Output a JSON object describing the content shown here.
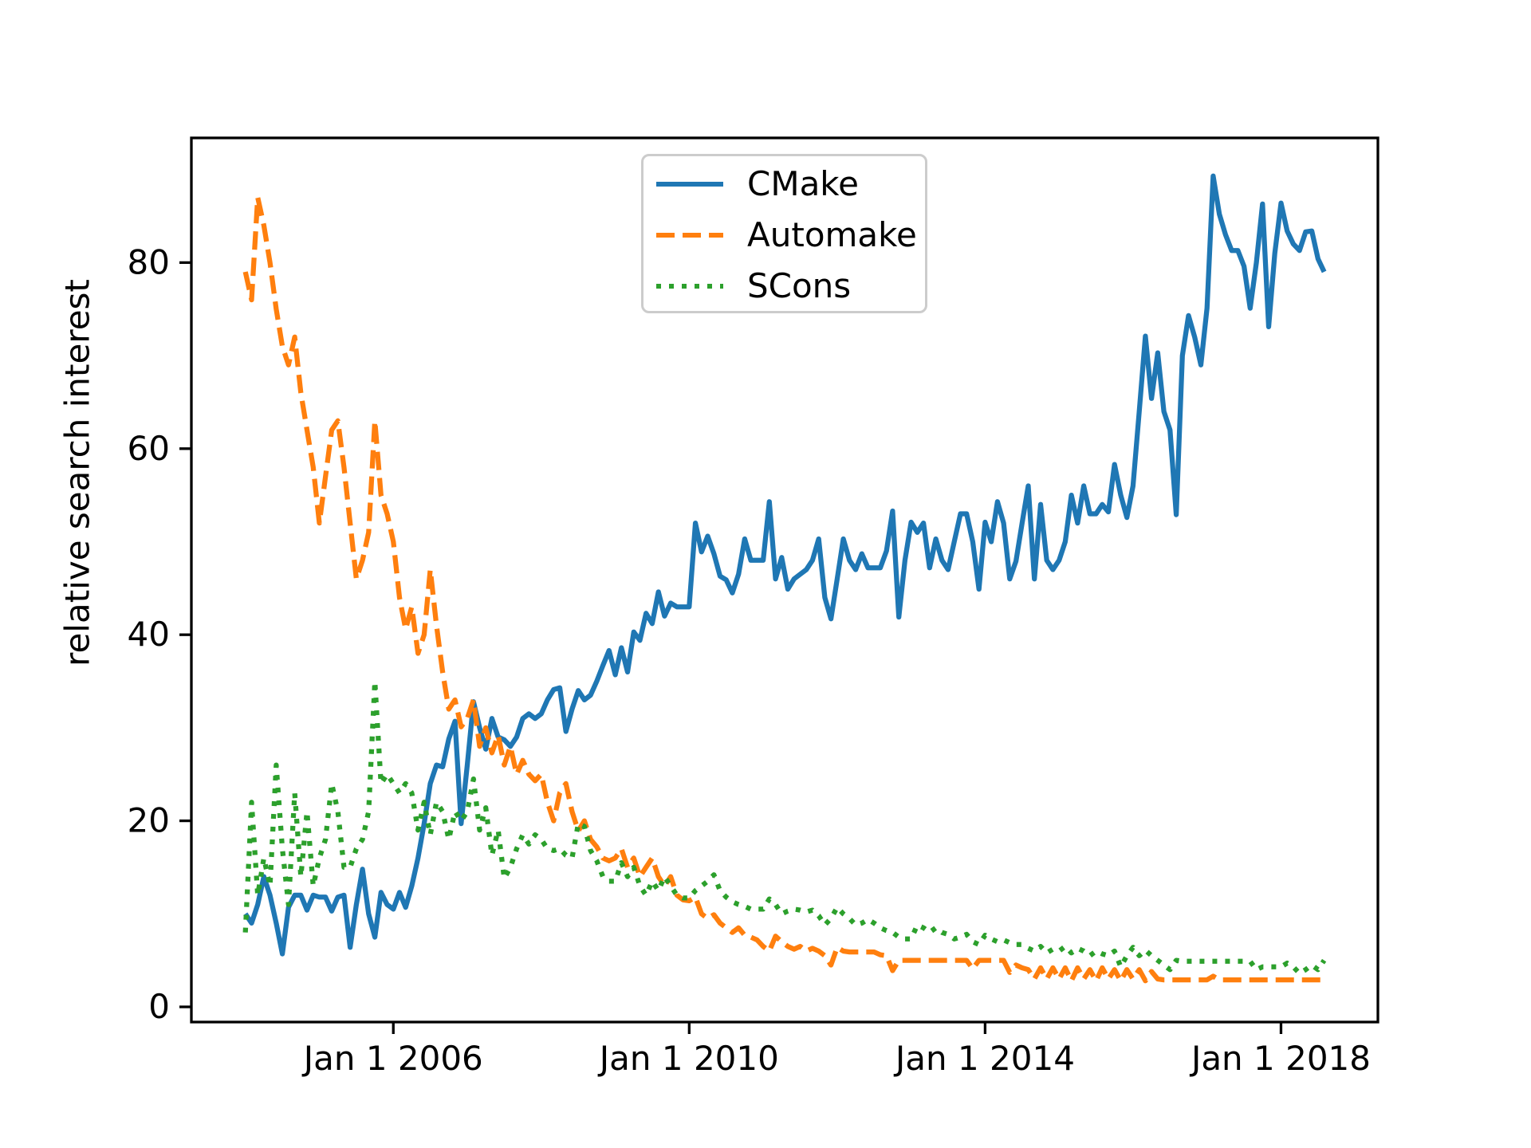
{
  "figure": {
    "background": "#ffffff"
  },
  "axes": {
    "ylabel": "relative search interest",
    "xlabel": "",
    "x_ticks": [
      {
        "year": 2006,
        "label": "Jan 1 2006"
      },
      {
        "year": 2010,
        "label": "Jan 1 2010"
      },
      {
        "year": 2014,
        "label": "Jan 1 2014"
      },
      {
        "year": 2018,
        "label": "Jan 1 2018"
      }
    ],
    "y_ticks": [
      0,
      20,
      40,
      60,
      80
    ],
    "xlim_years": [
      2003.27,
      2019.31
    ],
    "ylim": [
      -1.63,
      93.4
    ],
    "grid": false,
    "spine_color": "#000000"
  },
  "legend": {
    "position": "upper center",
    "entries": [
      {
        "label": "CMake",
        "color": "#1f77b4",
        "style": "solid"
      },
      {
        "label": "Automake",
        "color": "#ff7f0e",
        "style": "dashed"
      },
      {
        "label": "SCons",
        "color": "#2ca02c",
        "style": "dotted"
      }
    ]
  },
  "chart_data": {
    "type": "line",
    "title": "",
    "xlabel": "",
    "ylabel": "relative search interest",
    "x_unit": "decimal_year",
    "x_start_year": 2004.0,
    "x_step_years": 0.0833333,
    "n_points": 176,
    "x_range_note": "monthly values Jan 2004 - Aug 2018",
    "series": [
      {
        "name": "CMake",
        "color": "#1f77b4",
        "style": "solid",
        "values": [
          10,
          9,
          11,
          14,
          12,
          9,
          5.7,
          10.7,
          12,
          12,
          10.4,
          12,
          11.8,
          11.8,
          10.3,
          11.8,
          12,
          6.4,
          11,
          14.8,
          10,
          7.5,
          12.3,
          11,
          10.5,
          12.3,
          10.7,
          13,
          16,
          19.7,
          24,
          26,
          25.8,
          28.8,
          30.7,
          19.7,
          26,
          32.8,
          30,
          27.7,
          31,
          29,
          28.7,
          28,
          29,
          31,
          31.5,
          31,
          31.5,
          33,
          34.1,
          34.3,
          29.6,
          32,
          34,
          33,
          33.5,
          35,
          36.7,
          38.3,
          35.7,
          38.6,
          36,
          40.3,
          39.4,
          42.3,
          41.2,
          44.6,
          42,
          43.4,
          43,
          43,
          43,
          52,
          48.9,
          50.6,
          48.7,
          46.3,
          45.9,
          44.5,
          46.5,
          50.3,
          48,
          48,
          48,
          54.3,
          46,
          48.3,
          44.9,
          46,
          46.5,
          47,
          48,
          50.3,
          44,
          41.7,
          46,
          50.3,
          48,
          47,
          48.7,
          47.2,
          47.2,
          47.2,
          49,
          53.3,
          41.9,
          48,
          52.1,
          51,
          52,
          47.2,
          50.3,
          48,
          47,
          50,
          53,
          53,
          50,
          44.9,
          52.1,
          50,
          54.3,
          52,
          46,
          47.9,
          52,
          56,
          46,
          54,
          48,
          47,
          48,
          50,
          55,
          52,
          56,
          53,
          53,
          54,
          53.2,
          58.3,
          55,
          52.6,
          56,
          64,
          72.1,
          65.4,
          70.3,
          64,
          62,
          52.9,
          70,
          74.3,
          72,
          69,
          75.1,
          89.3,
          85.2,
          83,
          81.3,
          81.3,
          79.6,
          75.1,
          80,
          86.3,
          73.1,
          81,
          86.4,
          83.4,
          82,
          81.3,
          83.3,
          83.4,
          80.4,
          79
        ]
      },
      {
        "name": "Automake",
        "color": "#ff7f0e",
        "style": "dashed",
        "values": [
          79,
          76,
          87,
          84,
          80,
          75,
          71,
          69,
          72,
          66,
          62,
          58,
          52,
          57,
          62,
          63,
          58,
          52,
          46,
          48,
          51,
          63,
          55,
          53,
          50,
          44,
          40.6,
          43,
          38,
          40,
          47,
          41,
          36,
          32,
          33,
          30.1,
          31,
          33,
          28,
          30,
          27.3,
          29.2,
          26,
          28,
          25,
          26.5,
          25,
          24.3,
          25,
          22,
          20,
          23,
          24,
          21,
          18.9,
          20,
          18,
          17.2,
          16,
          15.7,
          16,
          17,
          15,
          16,
          14,
          15,
          16,
          14,
          13,
          14,
          12,
          11.5,
          11.4,
          11.8,
          10,
          9.5,
          9.9,
          9,
          8.5,
          8,
          8.5,
          7.7,
          7.5,
          7.2,
          6.5,
          6,
          7.6,
          7,
          6.5,
          6.2,
          6.5,
          6,
          6.3,
          6,
          5.5,
          4.5,
          6.4,
          6,
          5.9,
          5.9,
          5.9,
          5.9,
          5.9,
          5.6,
          5.5,
          3.9,
          5,
          5,
          5,
          5,
          5,
          5,
          5,
          5,
          5,
          5,
          5,
          5,
          4.1,
          5,
          5,
          5,
          5,
          5,
          3.7,
          4.5,
          4.2,
          4,
          3,
          4.2,
          3,
          4.2,
          3,
          4.2,
          2.8,
          4.2,
          3,
          4,
          2.8,
          4.2,
          3,
          4,
          2.8,
          4,
          3,
          4,
          2.8,
          3.8,
          3,
          2.9,
          2.9,
          2.9,
          2.9,
          2.9,
          2.9,
          2.9,
          2.9,
          3.3,
          2.9,
          2.9,
          2.9,
          2.9,
          2.9,
          2.9,
          2.9,
          2.9,
          2.9,
          2.9,
          2.9,
          2.9,
          2.9,
          2.9,
          2.9,
          2.9,
          2.9,
          2.9
        ]
      },
      {
        "name": "SCons",
        "color": "#2ca02c",
        "style": "dotted",
        "values": [
          8,
          22,
          12,
          16,
          13,
          26,
          17,
          11,
          23,
          14,
          21,
          13,
          16,
          18,
          24,
          21,
          15,
          15,
          17,
          18,
          21,
          35,
          24,
          25,
          24,
          23,
          24,
          23,
          19,
          22,
          18.5,
          22,
          21,
          18,
          21,
          20,
          21,
          24.5,
          19,
          21.4,
          16.3,
          19,
          13.8,
          15,
          17,
          18.5,
          17.5,
          18.5,
          18,
          17,
          16.8,
          17,
          16.3,
          16,
          19.7,
          19.4,
          16.8,
          15.7,
          14,
          13.5,
          13.5,
          15.5,
          14,
          15,
          13,
          12,
          13.5,
          12.5,
          14,
          13,
          12,
          11.7,
          11.7,
          12.5,
          13,
          13.5,
          14.2,
          12.5,
          11.8,
          11.3,
          11,
          10.8,
          10.5,
          10.5,
          10.5,
          11.6,
          11,
          10,
          10.3,
          10.5,
          10.4,
          10.2,
          10.4,
          9.8,
          8.8,
          9.5,
          10.7,
          10,
          9.5,
          8.8,
          9,
          9.4,
          9,
          8.5,
          8.2,
          8,
          7.5,
          7.3,
          7.3,
          8.8,
          8.5,
          8,
          8.5,
          8,
          7.8,
          7.3,
          7.5,
          7.8,
          7,
          6.7,
          7.7,
          7.3,
          7,
          7.2,
          6.9,
          6.7,
          6.7,
          6.3,
          6,
          6.5,
          5.8,
          6.2,
          6,
          6.5,
          5.8,
          6.3,
          6,
          5.5,
          6,
          5.7,
          5.5,
          6,
          4.3,
          5.5,
          6.4,
          5.5,
          6.1,
          5.5,
          5,
          4.5,
          4,
          5,
          4.9,
          4.9,
          4.9,
          4.9,
          4.9,
          4.9,
          4.9,
          4.9,
          4.9,
          4.9,
          4.9,
          4.9,
          4,
          4.3,
          4.3,
          4.3,
          4.3,
          4.7,
          4.3,
          3.6,
          4,
          4.5,
          4,
          5
        ]
      }
    ]
  }
}
